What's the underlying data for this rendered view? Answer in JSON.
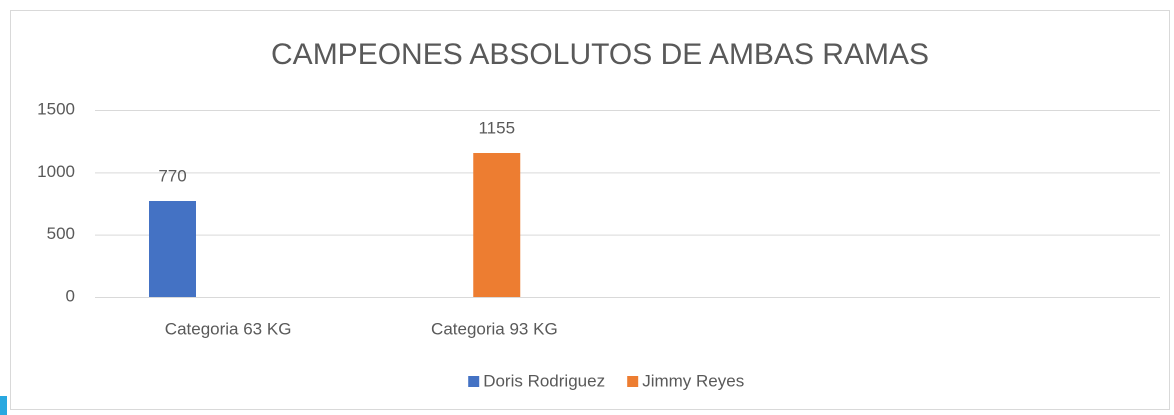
{
  "chart_data": {
    "type": "bar",
    "title": "CAMPEONES ABSOLUTOS DE AMBAS RAMAS",
    "categories": [
      "Categoria 63 KG",
      "Categoria 93 KG",
      null,
      null
    ],
    "series": [
      {
        "name": "Doris Rodriguez",
        "color": "#4472c4",
        "values": [
          770,
          null,
          null,
          null
        ]
      },
      {
        "name": "Jimmy Reyes",
        "color": "#ed7d31",
        "values": [
          null,
          1155,
          null,
          null
        ]
      }
    ],
    "ylim": [
      0,
      1500
    ],
    "yticks": [
      0,
      500,
      1000,
      1500
    ],
    "grid": true,
    "legend": "bottom"
  }
}
